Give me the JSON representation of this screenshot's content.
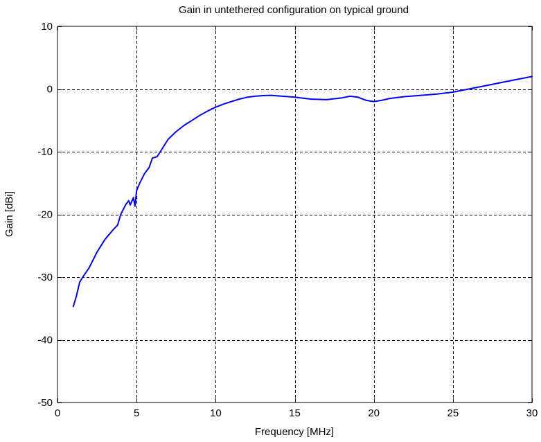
{
  "chart_data": {
    "type": "line",
    "title": "Gain in untethered configuration on typical ground",
    "xlabel": "Frequency [MHz]",
    "ylabel": "Gain [dBi]",
    "xlim": [
      0,
      30
    ],
    "ylim": [
      -50,
      10
    ],
    "xticks": [
      0,
      5,
      10,
      15,
      20,
      25,
      30
    ],
    "yticks": [
      -50,
      -40,
      -30,
      -20,
      -10,
      0,
      10
    ],
    "xtick_labels": [
      "0",
      "5",
      "10",
      "15",
      "20",
      "25",
      "30"
    ],
    "ytick_labels": [
      "-50",
      "-40",
      "-30",
      "-20",
      "-10",
      "0",
      "10"
    ],
    "grid": true,
    "series": [
      {
        "color": "#0000ff",
        "x": [
          1.0,
          1.2,
          1.4,
          1.6,
          2.0,
          2.5,
          3.0,
          3.5,
          3.8,
          4.0,
          4.3,
          4.5,
          4.6,
          4.8,
          4.9,
          5.0,
          5.2,
          5.5,
          5.8,
          6.0,
          6.3,
          6.5,
          7.0,
          7.5,
          8.0,
          8.5,
          9.0,
          9.5,
          10.0,
          10.5,
          11.0,
          11.5,
          12.0,
          12.5,
          13.0,
          13.5,
          14.0,
          15.0,
          16.0,
          17.0,
          18.0,
          18.5,
          19.0,
          19.5,
          20.0,
          20.5,
          21.0,
          22.0,
          23.0,
          24.0,
          25.0,
          26.0,
          27.0,
          28.0,
          29.0,
          30.0
        ],
        "y": [
          -34.7,
          -33.0,
          -30.8,
          -30.0,
          -28.5,
          -26.0,
          -24.0,
          -22.5,
          -21.7,
          -20.0,
          -18.5,
          -17.8,
          -18.5,
          -17.3,
          -18.7,
          -16.2,
          -15.0,
          -13.5,
          -12.5,
          -11.0,
          -10.8,
          -10.0,
          -8.0,
          -6.8,
          -5.8,
          -5.0,
          -4.2,
          -3.5,
          -2.9,
          -2.4,
          -2.0,
          -1.6,
          -1.3,
          -1.15,
          -1.05,
          -1.0,
          -1.1,
          -1.3,
          -1.6,
          -1.7,
          -1.4,
          -1.15,
          -1.3,
          -1.8,
          -2.0,
          -1.8,
          -1.5,
          -1.2,
          -1.0,
          -0.8,
          -0.5,
          0.0,
          0.5,
          1.0,
          1.5,
          2.0
        ]
      }
    ]
  }
}
